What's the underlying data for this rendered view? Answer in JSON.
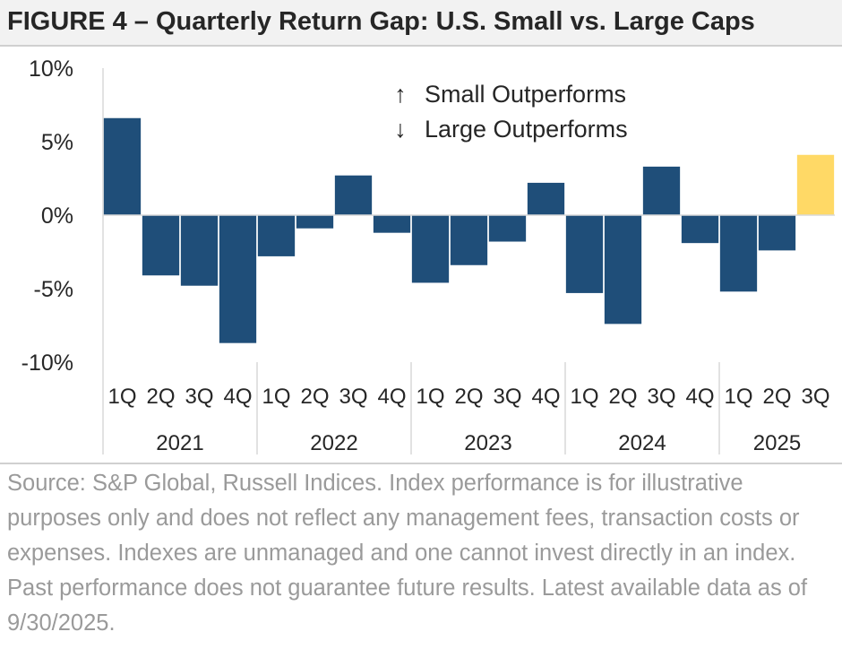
{
  "title": "FIGURE 4 – Quarterly Return Gap:  U.S. Small vs. Large Caps",
  "chart_data": {
    "type": "bar",
    "ylim": [
      -10,
      10
    ],
    "yticks": [
      10,
      5,
      0,
      -5,
      -10
    ],
    "ytick_labels": [
      "10%",
      "5%",
      "0%",
      "-5%",
      "-10%"
    ],
    "quarter_labels": [
      "1Q",
      "2Q",
      "3Q",
      "4Q",
      "1Q",
      "2Q",
      "3Q",
      "4Q",
      "1Q",
      "2Q",
      "3Q",
      "4Q",
      "1Q",
      "2Q",
      "3Q",
      "4Q",
      "1Q",
      "2Q",
      "3Q"
    ],
    "years": [
      "2021",
      "2022",
      "2023",
      "2024",
      "2025"
    ],
    "year_quarter_counts": [
      4,
      4,
      4,
      4,
      3
    ],
    "values": [
      6.6,
      -4.1,
      -4.8,
      -8.7,
      -2.8,
      -0.9,
      2.7,
      -1.2,
      -4.6,
      -3.4,
      -1.8,
      2.2,
      -5.3,
      -7.4,
      3.3,
      -1.9,
      -5.2,
      -2.4,
      4.1
    ],
    "highlight_index": 18,
    "colors": {
      "bar": "#1f4e79",
      "highlight": "#ffd966",
      "axis": "#d9d9d9",
      "text": "#262626"
    },
    "legend": {
      "up_arrow": "↑",
      "down_arrow": "↓",
      "up_label": "Small Outperforms",
      "down_label": "Large Outperforms"
    }
  },
  "source_text": "Source: S&P Global, Russell Indices. Index performance is for illustrative purposes only and does not reflect any management fees, transaction costs or expenses. Indexes are unmanaged and one cannot invest directly in an index. Past performance does not guarantee future results. Latest available data as of 9/30/2025."
}
